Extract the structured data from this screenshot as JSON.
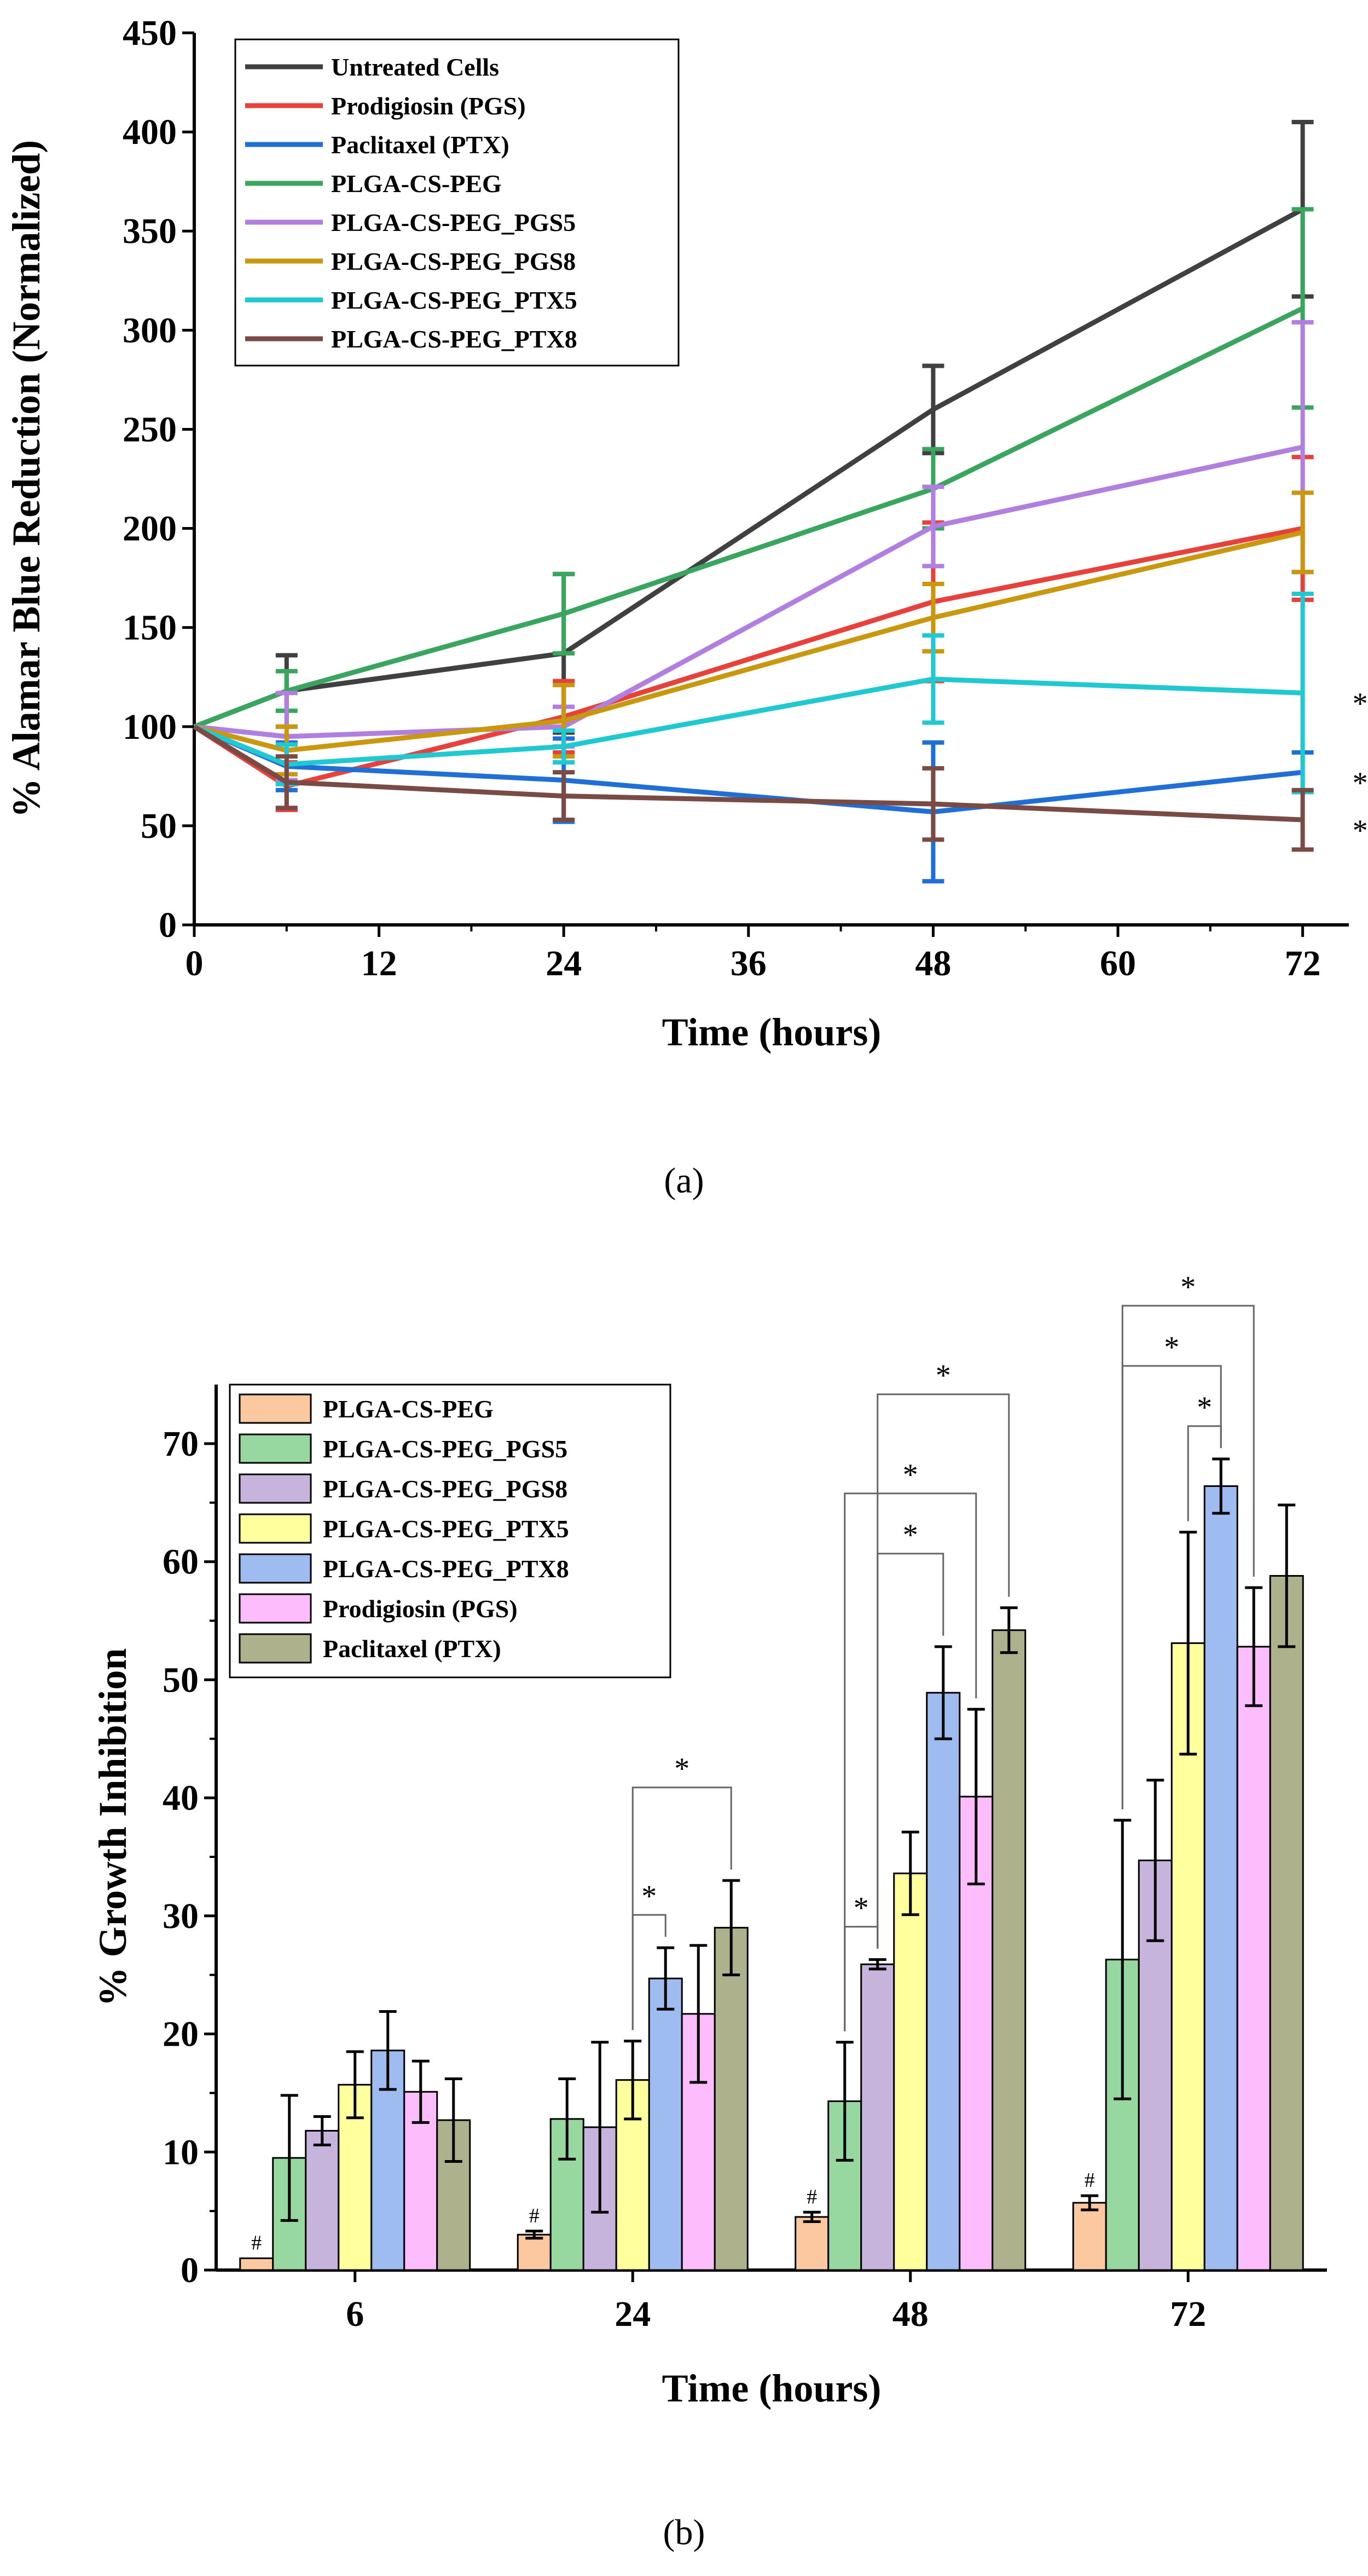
{
  "chart_data": [
    {
      "id": "a",
      "type": "line",
      "caption": "(a)",
      "xlabel": "Time (hours)",
      "ylabel": "% Alamar Blue Reduction (Normalized)",
      "xlim": [
        0,
        75
      ],
      "ylim": [
        0,
        450
      ],
      "xticks": [
        0,
        12,
        24,
        36,
        48,
        60,
        72
      ],
      "yticks": [
        0,
        50,
        100,
        150,
        200,
        250,
        300,
        350,
        400,
        450
      ],
      "x": [
        0,
        6,
        24,
        48,
        72
      ],
      "series": [
        {
          "name": "Untreated Cells",
          "color": "#404040",
          "values": [
            100,
            118,
            137,
            260,
            361
          ],
          "errors": [
            0,
            18,
            40,
            22,
            44
          ]
        },
        {
          "name": "Prodigiosin (PGS)",
          "color": "#e8403a",
          "values": [
            100,
            70,
            105,
            163,
            200
          ],
          "errors": [
            0,
            12,
            18,
            40,
            36
          ]
        },
        {
          "name": "Paclitaxel (PTX)",
          "color": "#1f6fd6",
          "values": [
            100,
            80,
            73,
            57,
            77
          ],
          "errors": [
            0,
            12,
            21,
            35,
            10
          ]
        },
        {
          "name": "PLGA-CS-PEG",
          "color": "#3aa55e",
          "values": [
            100,
            118,
            157,
            220,
            311
          ],
          "errors": [
            0,
            10,
            20,
            20,
            50
          ]
        },
        {
          "name": "PLGA-CS-PEG_PGS5",
          "color": "#b07fe0",
          "values": [
            100,
            95,
            100,
            201,
            241
          ],
          "errors": [
            0,
            22,
            10,
            20,
            63
          ]
        },
        {
          "name": "PLGA-CS-PEG_PGS8",
          "color": "#c9980f",
          "values": [
            100,
            88,
            103,
            155,
            198
          ],
          "errors": [
            0,
            12,
            18,
            17,
            20
          ]
        },
        {
          "name": "PLGA-CS-PEG_PTX5",
          "color": "#20c8d2",
          "values": [
            100,
            81,
            90,
            124,
            117
          ],
          "errors": [
            0,
            10,
            8,
            22,
            50
          ]
        },
        {
          "name": "PLGA-CS-PEG_PTX8",
          "color": "#7a4a45",
          "values": [
            100,
            72,
            65,
            61,
            53
          ],
          "errors": [
            0,
            13,
            12,
            18,
            15
          ]
        }
      ],
      "annotations": [
        {
          "text": "*",
          "series": "PLGA-CS-PEG_PTX5",
          "x": 72
        },
        {
          "text": "*",
          "series": "Paclitaxel (PTX)",
          "x": 72
        },
        {
          "text": "*",
          "series": "PLGA-CS-PEG_PTX8",
          "x": 72
        }
      ]
    },
    {
      "id": "b",
      "type": "bar",
      "caption": "(b)",
      "xlabel": "Time (hours)",
      "ylabel": "% Growth Inhibition",
      "ylim": [
        0,
        75
      ],
      "yticks": [
        0,
        10,
        20,
        30,
        40,
        50,
        60,
        70
      ],
      "categories": [
        "6",
        "24",
        "48",
        "72"
      ],
      "series": [
        {
          "name": "PLGA-CS-PEG",
          "color": "#fbc8a0",
          "values": [
            1.0,
            3.0,
            4.5,
            5.7
          ],
          "errors": [
            0.0,
            0.3,
            0.4,
            0.6
          ]
        },
        {
          "name": "PLGA-CS-PEG_PGS5",
          "color": "#96d8a0",
          "values": [
            9.5,
            12.8,
            14.3,
            26.3
          ],
          "errors": [
            5.3,
            3.4,
            5.0,
            11.8
          ]
        },
        {
          "name": "PLGA-CS-PEG_PGS8",
          "color": "#c7b4dc",
          "values": [
            11.8,
            12.1,
            25.9,
            34.7
          ],
          "errors": [
            1.2,
            7.2,
            0.4,
            6.8
          ]
        },
        {
          "name": "PLGA-CS-PEG_PTX5",
          "color": "#ffff9e",
          "values": [
            15.7,
            16.1,
            33.6,
            53.1
          ],
          "errors": [
            2.8,
            3.3,
            3.5,
            9.4
          ]
        },
        {
          "name": "PLGA-CS-PEG_PTX8",
          "color": "#9ebcf0",
          "values": [
            18.6,
            24.7,
            48.9,
            66.4
          ],
          "errors": [
            3.3,
            2.6,
            3.9,
            2.3
          ]
        },
        {
          "name": "Prodigiosin (PGS)",
          "color": "#fdbdfd",
          "values": [
            15.1,
            21.7,
            40.1,
            52.8
          ],
          "errors": [
            2.6,
            5.8,
            7.4,
            5.0
          ]
        },
        {
          "name": "Paclitaxel (PTX)",
          "color": "#adb28c",
          "values": [
            12.7,
            29.0,
            54.2,
            58.8
          ],
          "errors": [
            3.5,
            4.0,
            1.9,
            6.0
          ]
        }
      ],
      "annotations": [
        {
          "text": "#",
          "category": "6",
          "series": "PLGA-CS-PEG"
        },
        {
          "text": "#",
          "category": "24",
          "series": "PLGA-CS-PEG"
        },
        {
          "text": "#",
          "category": "48",
          "series": "PLGA-CS-PEG"
        },
        {
          "text": "#",
          "category": "72",
          "series": "PLGA-CS-PEG"
        },
        {
          "text": "*",
          "category": "24",
          "from": "PLGA-CS-PEG_PTX5",
          "to": "PLGA-CS-PEG_PTX8"
        },
        {
          "text": "*",
          "category": "24",
          "from": "PLGA-CS-PEG_PTX5",
          "to": "Paclitaxel (PTX)"
        },
        {
          "text": "*",
          "category": "48",
          "from": "PLGA-CS-PEG_PGS5",
          "to": "PLGA-CS-PEG_PGS8"
        },
        {
          "text": "*",
          "category": "48",
          "from": "PLGA-CS-PEG_PGS8",
          "to": "PLGA-CS-PEG_PTX8"
        },
        {
          "text": "*",
          "category": "48",
          "from": "PLGA-CS-PEG_PGS5",
          "to": "Prodigiosin (PGS)"
        },
        {
          "text": "*",
          "category": "48",
          "from": "PLGA-CS-PEG_PGS8",
          "to": "Paclitaxel (PTX)"
        },
        {
          "text": "*",
          "category": "72",
          "from": "PLGA-CS-PEG_PTX5",
          "to": "PLGA-CS-PEG_PTX8"
        },
        {
          "text": "*",
          "category": "72",
          "from": "PLGA-CS-PEG_PGS5",
          "to": "PLGA-CS-PEG_PTX8"
        },
        {
          "text": "*",
          "category": "72",
          "from": "PLGA-CS-PEG_PGS5",
          "to": "Prodigiosin (PGS)"
        }
      ]
    }
  ]
}
